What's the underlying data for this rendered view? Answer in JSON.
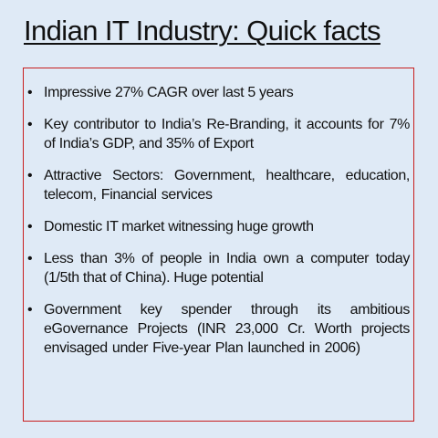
{
  "slide": {
    "title": "Indian IT Industry: Quick facts",
    "bullet_glyph": "•",
    "bullets": [
      "Impressive 27% CAGR over last 5 years",
      "Key contributor to India’s Re-Branding, it accounts for 7% of India’s GDP, and 35% of Export",
      "Attractive Sectors: Government, healthcare, education, telecom, Financial services",
      "Domestic IT market witnessing huge growth",
      "Less than 3% of people in India own a computer today (1/5th that of China). Huge potential",
      "Government key spender through its ambitious eGovernance Projects (INR 23,000 Cr. Worth projects envisaged under Five-year Plan launched in 2006)"
    ],
    "colors": {
      "background": "#dfeaf6",
      "border": "#c81e1e",
      "text": "#111111"
    }
  }
}
